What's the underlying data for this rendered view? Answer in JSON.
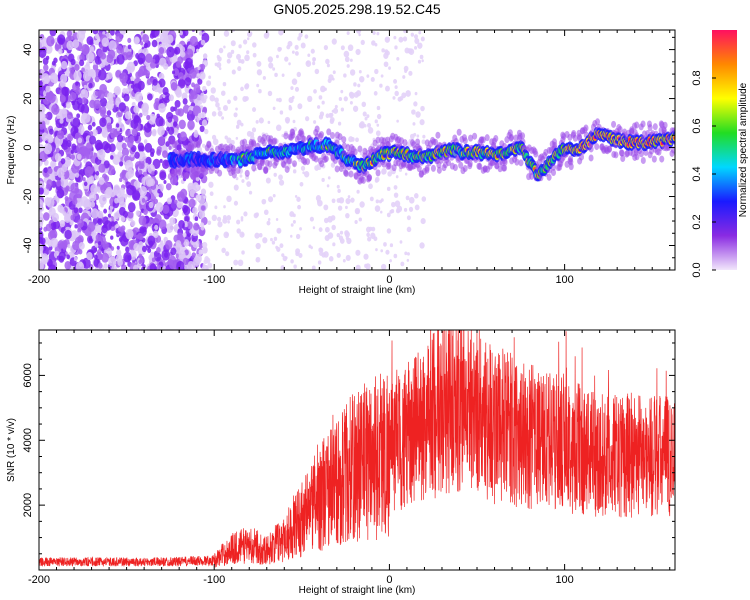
{
  "figure": {
    "title": "GN05.2025.298.19.52.C45"
  },
  "chart_data": [
    {
      "type": "heatmap",
      "xlabel": "Height of straight line (km)",
      "ylabel": "Frequency (Hz)",
      "xlim": [
        -200,
        163
      ],
      "ylim": [
        -50,
        48
      ],
      "xticks": [
        -200,
        -100,
        0,
        100
      ],
      "yticks": [
        -40,
        -20,
        0,
        20,
        40
      ],
      "colorbar": {
        "label": "Normalized spectral amplitude",
        "range": [
          0,
          1
        ],
        "ticks": [
          0.0,
          0.2,
          0.4,
          0.6,
          0.8
        ],
        "tick_labels": [
          "0.0",
          "0.2",
          "0.4",
          "0.6",
          "0.8"
        ],
        "colormap": [
          "#f2e6fb",
          "#8a2be2",
          "#1a1aff",
          "#00d8ff",
          "#22dd22",
          "#ffff00",
          "#ff8800",
          "#ff1060"
        ]
      },
      "ridge": {
        "description_x": [
          -125,
          -100,
          -85,
          -75,
          -65,
          -55,
          -45,
          -35,
          -25,
          -15,
          -5,
          5,
          15,
          25,
          35,
          45,
          55,
          65,
          75,
          80,
          85,
          90,
          95,
          100,
          110,
          120,
          130,
          140,
          150,
          163
        ],
        "frequency": [
          -5,
          -5,
          -5,
          -3,
          -2,
          -1,
          1,
          1,
          -4,
          -8,
          -3,
          -2,
          -4,
          -3,
          -1,
          -2,
          -2,
          -3,
          0,
          -6,
          -12,
          -7,
          -3,
          -1,
          0,
          6,
          3,
          2,
          2,
          4
        ]
      },
      "grid": false
    },
    {
      "type": "line",
      "xlabel": "Height of straight line (km)",
      "ylabel": "SNR (10 * v/v)",
      "xlim": [
        -200,
        163
      ],
      "ylim": [
        0,
        7400
      ],
      "xticks": [
        -200,
        -100,
        0,
        100
      ],
      "yticks": [
        2000,
        4000,
        6000
      ],
      "color": "#ee2222",
      "series": [
        {
          "x": [
            -200,
            -180,
            -160,
            -140,
            -120,
            -100,
            -90,
            -80,
            -70,
            -60,
            -50,
            -40,
            -30,
            -20,
            -10,
            0,
            10,
            20,
            30,
            40,
            50,
            60,
            70,
            80,
            90,
            100,
            110,
            120,
            130,
            140,
            150,
            163
          ],
          "values": [
            250,
            250,
            250,
            250,
            260,
            300,
            650,
            800,
            600,
            1000,
            1600,
            2300,
            2700,
            3200,
            3500,
            3700,
            4100,
            4600,
            5000,
            5300,
            5000,
            4500,
            4300,
            4100,
            4000,
            3900,
            3700,
            3500,
            3500,
            3600,
            3500,
            3500
          ]
        }
      ],
      "grid": false
    }
  ]
}
